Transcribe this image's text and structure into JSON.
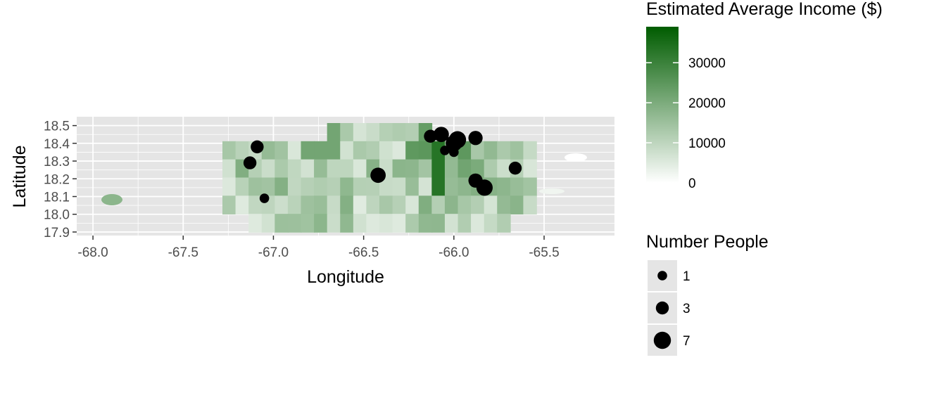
{
  "colors": {
    "panel_bg": "#e5e5e5",
    "grid": "#ffffff",
    "income_low": "#ffffff",
    "income_high": "#005c00",
    "point": "#000000",
    "axis_text": "#4d4d4d",
    "title_text": "#000000"
  },
  "chart_data": {
    "type": "scatter",
    "base_layer": "choropleth of Puerto Rico municipalities shaded by estimated average income",
    "xlabel": "Longitude",
    "ylabel": "Latitude",
    "xlim": [
      -68.09,
      -65.11
    ],
    "ylim": [
      17.88,
      18.55
    ],
    "x_ticks": [
      -68.0,
      -67.5,
      -67.0,
      -66.5,
      -66.0,
      -65.5
    ],
    "x_tick_labels": [
      "-68.0",
      "-67.5",
      "-67.0",
      "-66.5",
      "-66.0",
      "-65.5"
    ],
    "y_ticks": [
      17.9,
      18.0,
      18.1,
      18.2,
      18.3,
      18.4,
      18.5
    ],
    "y_tick_labels": [
      "17.9",
      "18.0",
      "18.1",
      "18.2",
      "18.3",
      "18.4",
      "18.5"
    ],
    "grid": true,
    "fill_legend": {
      "title": "Estimated Average Income ($)",
      "min": 0,
      "max": 39000,
      "breaks": [
        0,
        10000,
        20000,
        30000
      ],
      "break_labels": [
        "0",
        "10000",
        "20000",
        "30000"
      ]
    },
    "size_legend": {
      "title": "Number People",
      "breaks": [
        1,
        3,
        7
      ],
      "break_labels": [
        "1",
        "3",
        "7"
      ]
    },
    "points": [
      {
        "x": -67.09,
        "y": 18.38,
        "n": 3
      },
      {
        "x": -67.13,
        "y": 18.29,
        "n": 3
      },
      {
        "x": -67.05,
        "y": 18.09,
        "n": 1
      },
      {
        "x": -66.42,
        "y": 18.22,
        "n": 5
      },
      {
        "x": -66.13,
        "y": 18.44,
        "n": 3
      },
      {
        "x": -66.07,
        "y": 18.45,
        "n": 5
      },
      {
        "x": -66.05,
        "y": 18.36,
        "n": 1
      },
      {
        "x": -66.0,
        "y": 18.4,
        "n": 6
      },
      {
        "x": -65.98,
        "y": 18.42,
        "n": 7
      },
      {
        "x": -66.0,
        "y": 18.35,
        "n": 1
      },
      {
        "x": -65.88,
        "y": 18.43,
        "n": 4
      },
      {
        "x": -65.88,
        "y": 18.19,
        "n": 4
      },
      {
        "x": -65.83,
        "y": 18.15,
        "n": 6
      },
      {
        "x": -65.66,
        "y": 18.26,
        "n": 3
      }
    ]
  }
}
